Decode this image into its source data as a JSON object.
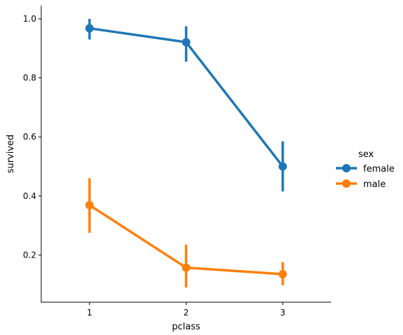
{
  "chart_data": {
    "type": "line",
    "xlabel": "pclass",
    "ylabel": "survived",
    "categories": [
      "1",
      "2",
      "3"
    ],
    "ylim": [
      0.04,
      1.045
    ],
    "yticks": [
      "0.2",
      "0.4",
      "0.6",
      "0.8",
      "1.0"
    ],
    "grid": false,
    "legend": {
      "title": "sex",
      "position": "right"
    },
    "series": [
      {
        "name": "female",
        "color": "#1f77b4",
        "values": [
          0.968,
          0.921,
          0.5
        ],
        "ci_low": [
          0.93,
          0.855,
          0.415
        ],
        "ci_high": [
          1.0,
          0.975,
          0.585
        ]
      },
      {
        "name": "male",
        "color": "#ff7f0e",
        "values": [
          0.369,
          0.157,
          0.135
        ],
        "ci_low": [
          0.275,
          0.09,
          0.097
        ],
        "ci_high": [
          0.46,
          0.235,
          0.176
        ]
      }
    ]
  }
}
